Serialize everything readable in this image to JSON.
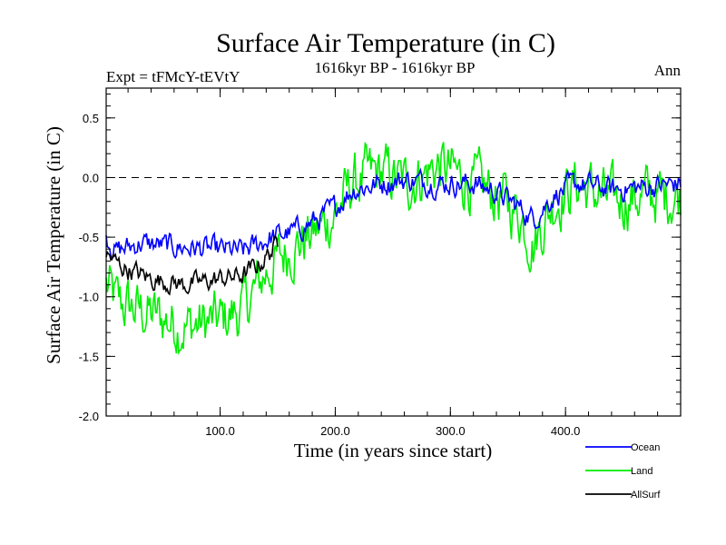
{
  "chart_data": {
    "type": "line",
    "title": "Surface Air Temperature (in C)",
    "subtitle_left": "Expt = tFMcY-tEVtY",
    "subtitle_center": "1616kyr BP - 1616kyr BP",
    "subtitle_right": "Ann",
    "xlabel": "Time (in years since start)",
    "ylabel": "Surface Air Temperature (in C)",
    "xlim": [
      1,
      500
    ],
    "ylim": [
      -2.0,
      0.75
    ],
    "x_ticks": [
      100,
      200,
      300,
      400
    ],
    "x_tick_labels": [
      "100.0",
      "200.0",
      "300.0",
      "400.0"
    ],
    "y_ticks": [
      -2.0,
      -1.5,
      -1.0,
      -0.5,
      0.0,
      0.5
    ],
    "y_tick_labels": [
      "-2.0",
      "-1.5",
      "-1.0",
      "-0.5",
      "0.0",
      "0.5"
    ],
    "reference_line": 0.0,
    "legend_position": "bottom-right",
    "series": [
      {
        "name": "Ocean",
        "color": "#0000ff",
        "x_range": [
          1,
          500
        ],
        "anchors": [
          [
            1,
            -0.5
          ],
          [
            10,
            -0.62
          ],
          [
            30,
            -0.55
          ],
          [
            60,
            -0.58
          ],
          [
            90,
            -0.6
          ],
          [
            120,
            -0.62
          ],
          [
            145,
            -0.5
          ],
          [
            165,
            -0.45
          ],
          [
            185,
            -0.35
          ],
          [
            200,
            -0.25
          ],
          [
            215,
            -0.1
          ],
          [
            240,
            -0.05
          ],
          [
            260,
            -0.02
          ],
          [
            290,
            -0.05
          ],
          [
            320,
            -0.05
          ],
          [
            340,
            -0.12
          ],
          [
            360,
            -0.25
          ],
          [
            372,
            -0.35
          ],
          [
            390,
            -0.15
          ],
          [
            410,
            -0.05
          ],
          [
            440,
            -0.1
          ],
          [
            470,
            -0.08
          ],
          [
            500,
            -0.05
          ]
        ],
        "noise": 0.08
      },
      {
        "name": "Land",
        "color": "#00ee00",
        "x_range": [
          1,
          500
        ],
        "anchors": [
          [
            1,
            -0.9
          ],
          [
            10,
            -1.05
          ],
          [
            40,
            -1.15
          ],
          [
            70,
            -1.25
          ],
          [
            100,
            -1.2
          ],
          [
            120,
            -1.1
          ],
          [
            140,
            -0.8
          ],
          [
            160,
            -0.6
          ],
          [
            185,
            -0.45
          ],
          [
            200,
            -0.3
          ],
          [
            215,
            -0.05
          ],
          [
            240,
            0.05
          ],
          [
            260,
            -0.05
          ],
          [
            290,
            0.1
          ],
          [
            320,
            -0.05
          ],
          [
            340,
            -0.15
          ],
          [
            360,
            -0.3
          ],
          [
            372,
            -0.55
          ],
          [
            390,
            -0.2
          ],
          [
            410,
            -0.05
          ],
          [
            440,
            -0.2
          ],
          [
            470,
            -0.15
          ],
          [
            500,
            -0.15
          ]
        ],
        "noise": 0.2
      },
      {
        "name": "AllSurf",
        "color": "#000000",
        "x_range": [
          1,
          150
        ],
        "anchors": [
          [
            1,
            -0.65
          ],
          [
            15,
            -0.75
          ],
          [
            40,
            -0.85
          ],
          [
            70,
            -0.9
          ],
          [
            100,
            -0.85
          ],
          [
            120,
            -0.82
          ],
          [
            135,
            -0.72
          ],
          [
            150,
            -0.55
          ]
        ],
        "noise": 0.07
      }
    ]
  }
}
